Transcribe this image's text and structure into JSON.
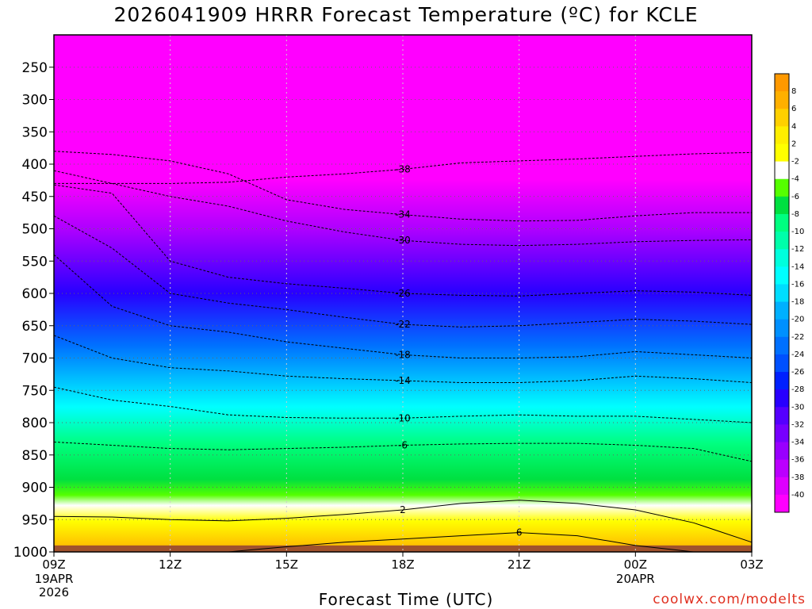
{
  "chart_data": {
    "type": "heatmap",
    "title": "2026041909 HRRR Forecast Temperature (ºC) for KCLE",
    "xlabel": "Forecast Time (UTC)",
    "credit": "coolwx.com/modelts",
    "y_axis": {
      "scale": "pressure (reversed)",
      "range": [
        1000,
        200
      ],
      "ticks": [
        250,
        300,
        350,
        400,
        450,
        500,
        550,
        600,
        650,
        700,
        750,
        800,
        850,
        900,
        950,
        1000
      ]
    },
    "x_axis": {
      "range": [
        "2026-04-19 09Z",
        "2026-04-20 03Z"
      ],
      "ticks": [
        {
          "label": "09Z",
          "sub": [
            "19APR",
            "2026"
          ]
        },
        {
          "label": "12Z",
          "sub": []
        },
        {
          "label": "15Z",
          "sub": []
        },
        {
          "label": "18Z",
          "sub": []
        },
        {
          "label": "21Z",
          "sub": []
        },
        {
          "label": "00Z",
          "sub": [
            "20APR"
          ]
        },
        {
          "label": "03Z",
          "sub": []
        }
      ]
    },
    "grid": true,
    "legend": "colorbar right",
    "colorbar": {
      "labels": [
        "8",
        "6",
        "4",
        "2",
        "-2",
        "-4",
        "-6",
        "-8",
        "-10",
        "-12",
        "-14",
        "-16",
        "-18",
        "-20",
        "-22",
        "-24",
        "-26",
        "-28",
        "-30",
        "-32",
        "-34",
        "-36",
        "-38",
        "-40"
      ],
      "colors": [
        "#ff9900",
        "#ffb000",
        "#ffd000",
        "#ffee00",
        "#ffff00",
        "#ffffff",
        "#55ff00",
        "#00e040",
        "#00ff80",
        "#00ffaa",
        "#00ffdd",
        "#00ffff",
        "#00ddff",
        "#00b0ff",
        "#0090ff",
        "#0070ff",
        "#0050ff",
        "#0020ff",
        "#2800ff",
        "#5500ff",
        "#7700ff",
        "#9900ff",
        "#bb00ff",
        "#dd00ff",
        "#ff00ff"
      ]
    },
    "series": [
      {
        "name": "-38",
        "x": [
          0,
          0.5,
          1,
          1.5,
          2,
          2.5,
          3,
          3.5,
          4,
          4.5,
          5,
          5.5,
          6
        ],
        "values": [
          430,
          430,
          430,
          428,
          420,
          415,
          408,
          398,
          395,
          392,
          388,
          384,
          382
        ]
      },
      {
        "name": "-34",
        "x": [
          0,
          0.5,
          1,
          1.5,
          2,
          2.5,
          3,
          3.5,
          4,
          4.5,
          5,
          5.5,
          6
        ],
        "values": [
          380,
          385,
          395,
          415,
          455,
          470,
          478,
          485,
          488,
          487,
          480,
          475,
          475
        ]
      },
      {
        "name": "-30",
        "x": [
          0,
          0.5,
          1,
          1.5,
          2,
          2.5,
          3,
          3.5,
          4,
          4.5,
          5,
          5.5,
          6
        ],
        "values": [
          410,
          430,
          450,
          465,
          488,
          505,
          518,
          524,
          526,
          524,
          520,
          518,
          517
        ]
      },
      {
        "name": "-26",
        "x": [
          0,
          0.5,
          1,
          1.5,
          2,
          2.5,
          3,
          3.5,
          4,
          4.5,
          5,
          5.5,
          6
        ],
        "values": [
          432,
          445,
          550,
          575,
          585,
          592,
          600,
          603,
          604,
          600,
          596,
          598,
          603
        ]
      },
      {
        "name": "-22",
        "x": [
          0,
          0.5,
          1,
          1.5,
          2,
          2.5,
          3,
          3.5,
          4,
          4.5,
          5,
          5.5,
          6
        ],
        "values": [
          480,
          530,
          600,
          615,
          625,
          637,
          648,
          652,
          650,
          645,
          640,
          643,
          648
        ]
      },
      {
        "name": "-18",
        "x": [
          0,
          0.5,
          1,
          1.5,
          2,
          2.5,
          3,
          3.5,
          4,
          4.5,
          5,
          5.5,
          6
        ],
        "values": [
          540,
          620,
          650,
          660,
          675,
          685,
          695,
          700,
          700,
          698,
          690,
          695,
          700
        ]
      },
      {
        "name": "-14",
        "x": [
          0,
          0.5,
          1,
          1.5,
          2,
          2.5,
          3,
          3.5,
          4,
          4.5,
          5,
          5.5,
          6
        ],
        "values": [
          665,
          700,
          715,
          720,
          728,
          732,
          735,
          738,
          738,
          735,
          728,
          732,
          738
        ]
      },
      {
        "name": "-10",
        "x": [
          0,
          0.5,
          1,
          1.5,
          2,
          2.5,
          3,
          3.5,
          4,
          4.5,
          5,
          5.5,
          6
        ],
        "values": [
          745,
          765,
          775,
          788,
          792,
          793,
          793,
          790,
          788,
          790,
          790,
          795,
          800
        ]
      },
      {
        "name": "-6",
        "x": [
          0,
          0.5,
          1,
          1.5,
          2,
          2.5,
          3,
          3.5,
          4,
          4.5,
          5,
          5.5,
          6
        ],
        "values": [
          830,
          835,
          840,
          842,
          840,
          838,
          835,
          833,
          832,
          832,
          835,
          840,
          860
        ]
      },
      {
        "name": "2",
        "x": [
          0,
          0.5,
          1,
          1.5,
          2,
          2.5,
          3,
          3.5,
          4,
          4.5,
          5,
          5.5,
          6
        ],
        "values": [
          945,
          946,
          950,
          952,
          948,
          942,
          935,
          925,
          920,
          925,
          935,
          955,
          985
        ]
      },
      {
        "name": "6",
        "x": [
          1.5,
          2,
          2.5,
          3,
          3.5,
          4,
          4.5,
          5,
          5.5,
          6
        ],
        "values": [
          1000,
          992,
          985,
          980,
          975,
          970,
          975,
          990,
          1000,
          1000
        ]
      }
    ],
    "surface_pressure_hpa": 990
  }
}
